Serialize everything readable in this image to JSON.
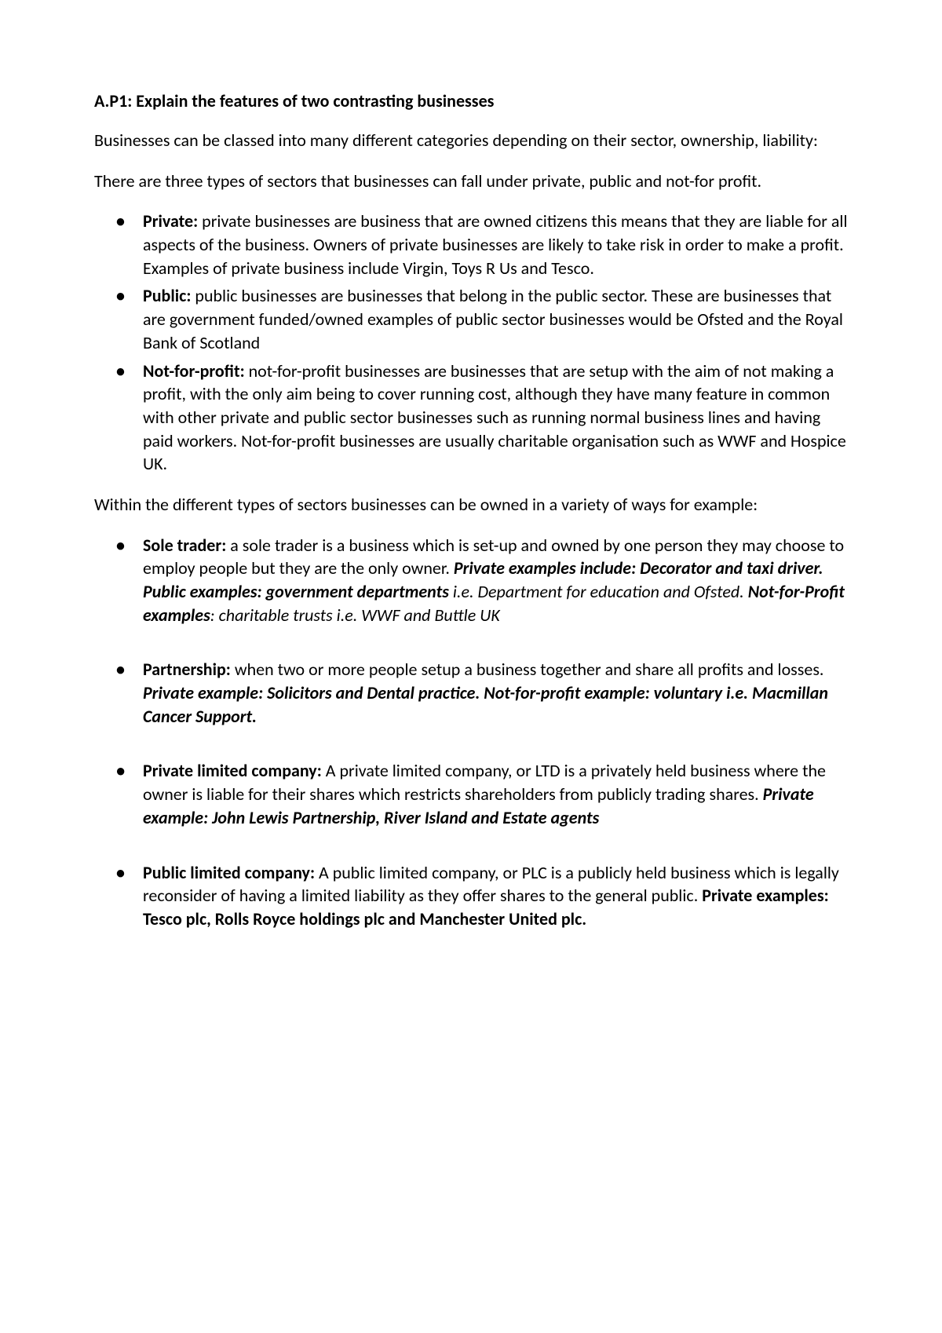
{
  "title": "A.P1: Explain the features of two contrasting businesses",
  "intro1": "Businesses can be classed into many different categories depending on their sector, ownership, liability:",
  "intro2": "There are three types of sectors that businesses can fall under private, public and not-for profit.",
  "sectors": {
    "private": {
      "label": "Private:",
      "text": " private businesses are business that are owned citizens this means that they are liable for all aspects of the business. Owners of private businesses are likely to take risk in order to make a profit. Examples of private business include Virgin, Toys R Us and Tesco."
    },
    "public": {
      "label": "Public:",
      "text": " public businesses are businesses that belong in the public sector. These are businesses that are government funded/owned examples of public sector businesses would be Ofsted and the Royal Bank of Scotland"
    },
    "nfp": {
      "label": "Not-for-profit:",
      "text": " not-for-profit businesses are businesses that are setup with the aim of not making a profit, with the only aim being to cover running cost, although they have many feature in common with other private and public sector businesses such as running normal business lines and having paid workers. Not-for-profit businesses are usually charitable organisation such as WWF and Hospice UK."
    }
  },
  "ownership_intro": "Within the different types of sectors businesses can be owned in a variety of ways for example:",
  "ownership": {
    "sole": {
      "label": "Sole trader:",
      "text1": " a sole trader is a business which is set-up and owned by one person they may choose to employ people but they are the only owner. ",
      "bi1": "Private examples include: Decorator and taxi driver. Public examples: government departments",
      "i1": " i.e. Department for education and Ofsted. ",
      "bi2": "Not-for-Profit examples",
      "i2": ": charitable trusts i.e. WWF and Buttle UK"
    },
    "partnership": {
      "label": "Partnership:",
      "text1": " when two or more people setup a business together and share all profits and losses. ",
      "bi1": "Private example: Solicitors and Dental practice. Not-for-profit example: voluntary i.e. Macmillan Cancer Support."
    },
    "ltd": {
      "label": "Private limited company:",
      "text1": " A private limited company, or LTD is a privately held business where the owner is liable for their shares which restricts shareholders from publicly trading shares. ",
      "bi1": "Private example: John Lewis Partnership, River Island and Estate agents"
    },
    "plc": {
      "label": "Public limited company:",
      "text1": " A public limited company, or PLC is a publicly held business which is legally reconsider of having a limited liability as they offer shares to the general public. ",
      "b1": "Private examples: Tesco plc, Rolls Royce holdings plc and Manchester United plc."
    }
  }
}
